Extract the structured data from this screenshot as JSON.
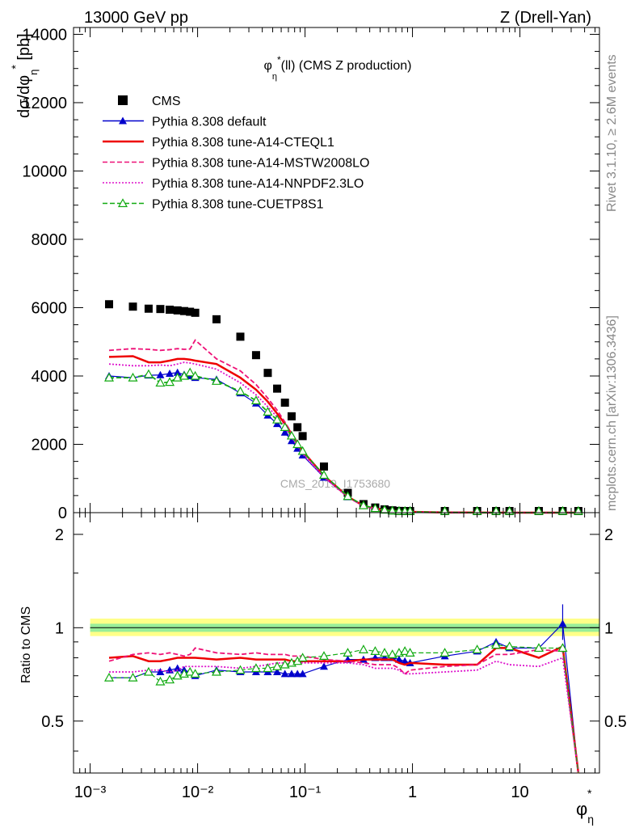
{
  "header": {
    "left": "13000 GeV pp",
    "right": "Z (Drell-Yan)"
  },
  "side_labels": {
    "rivet": "Rivet 3.1.10, ≥ 2.6M events",
    "mcplots": "mcplots.cern.ch [arXiv:1306.3436]"
  },
  "watermark": "CMS_2019_I1753680",
  "colors": {
    "cms": "#000000",
    "default": "#0000cc",
    "cteql1": "#ee0000",
    "mstw": "#ee1177",
    "nnpdf": "#dd11cc",
    "cuetp8s1": "#11aa11",
    "band_outer": "#ffff88",
    "band_inner": "#99ee99"
  },
  "chart_data": [
    {
      "type": "scatter",
      "title": "φ*η(ll) (CMS Z production)",
      "xlabel": "φ*η",
      "ylabel": "dσ/dφ*η [pb]",
      "xscale": "log",
      "xlim": [
        0.0007,
        55
      ],
      "ylim": [
        0,
        14200
      ],
      "yticks": [
        0,
        2000,
        4000,
        6000,
        8000,
        10000,
        12000,
        14000
      ],
      "ytick_labels": [
        "0",
        "2000",
        "4000",
        "6000",
        "8000",
        "10000",
        "12000",
        "14000"
      ],
      "legend_position": "top-left",
      "x": [
        0.0015,
        0.0025,
        0.0035,
        0.0045,
        0.0055,
        0.0065,
        0.0075,
        0.0085,
        0.0095,
        0.015,
        0.025,
        0.035,
        0.045,
        0.055,
        0.065,
        0.075,
        0.085,
        0.095,
        0.15,
        0.25,
        0.35,
        0.45,
        0.55,
        0.65,
        0.75,
        0.85,
        0.95,
        2.0,
        4.0,
        6.0,
        8.0,
        15.0,
        25.0,
        35.0
      ],
      "series": [
        {
          "name": "CMS",
          "key": "cms",
          "marker": "square",
          "line": "none",
          "values": [
            6100,
            6030,
            5970,
            5960,
            5940,
            5920,
            5900,
            5880,
            5850,
            5660,
            5150,
            4610,
            4090,
            3630,
            3220,
            2820,
            2500,
            2240,
            1350,
            580,
            250,
            150,
            95,
            68,
            50,
            38,
            30,
            8,
            2.5,
            1.2,
            0.7,
            0.25,
            0.08,
            0.0015
          ]
        },
        {
          "name": "Pythia 8.308 default",
          "key": "default",
          "marker": "filled-triangle",
          "line": "solid",
          "values": [
            4000,
            3950,
            4020,
            4030,
            4070,
            4100,
            4040,
            4000,
            3950,
            3900,
            3500,
            3200,
            2850,
            2600,
            2350,
            2100,
            1880,
            1680,
            1030,
            460,
            200,
            120,
            77,
            55,
            40,
            30,
            23,
            6.5,
            2.1,
            1.1,
            0.6,
            0.22,
            0.08,
            0.0003
          ]
        },
        {
          "name": "Pythia 8.308 tune-A14-CTEQL1",
          "key": "cteql1",
          "marker": "none",
          "line": "solid",
          "values": [
            4560,
            4580,
            4400,
            4400,
            4450,
            4500,
            4500,
            4480,
            4450,
            4350,
            3950,
            3600,
            3250,
            2900,
            2600,
            2300,
            2050,
            1800,
            1080,
            470,
            200,
            118,
            75,
            52,
            38,
            28,
            23,
            6.1,
            1.9,
            1.0,
            0.6,
            0.2,
            0.07,
            0.0003
          ]
        },
        {
          "name": "Pythia 8.308 tune-A14-MSTW2008LO",
          "key": "mstw",
          "marker": "none",
          "line": "dashed",
          "values": [
            4750,
            4800,
            4780,
            4750,
            4770,
            4800,
            4780,
            4790,
            5050,
            4500,
            4150,
            3750,
            3350,
            3000,
            2650,
            2330,
            2050,
            1800,
            1060,
            460,
            190,
            112,
            72,
            50,
            37,
            27,
            22,
            6.0,
            1.9,
            1.0,
            0.55,
            0.2,
            0.07,
            0.0003
          ]
        },
        {
          "name": "Pythia 8.308 tune-A14-NNPDF2.3LO",
          "key": "nnpdf",
          "marker": "none",
          "line": "dotted",
          "values": [
            4350,
            4300,
            4300,
            4320,
            4300,
            4350,
            4400,
            4380,
            4350,
            4200,
            3800,
            3450,
            3100,
            2800,
            2500,
            2200,
            1950,
            1720,
            1040,
            450,
            190,
            110,
            70,
            50,
            37,
            27,
            21,
            5.8,
            1.8,
            0.95,
            0.55,
            0.2,
            0.07,
            0.0003
          ]
        },
        {
          "name": "Pythia 8.308 tune-CUETP8S1",
          "key": "cuetp8s1",
          "marker": "open-triangle",
          "line": "dashed",
          "values": [
            3950,
            3950,
            4050,
            3800,
            3820,
            3950,
            4000,
            4100,
            4000,
            3850,
            3550,
            3280,
            2950,
            2720,
            2500,
            2250,
            2000,
            1800,
            1100,
            480,
            210,
            128,
            82,
            57,
            42,
            32,
            25,
            6.8,
            2.2,
            1.1,
            0.65,
            0.23,
            0.07,
            0.0003
          ]
        }
      ]
    },
    {
      "type": "line",
      "ylabel": "Ratio to CMS",
      "xscale": "log",
      "xlim": [
        0.0007,
        55
      ],
      "ylim": [
        0.34,
        2.35
      ],
      "yscale": "log",
      "yticks": [
        0.5,
        1,
        2
      ],
      "ytick_labels": [
        "0.5",
        "1",
        "2"
      ],
      "xticks": [
        0.001,
        0.01,
        0.1,
        1,
        10
      ],
      "xtick_labels": [
        "10⁻³",
        "10⁻²",
        "10⁻¹",
        "1",
        "10"
      ],
      "band_outer": [
        0.94,
        1.07
      ],
      "band_inner": [
        0.97,
        1.03
      ],
      "x": [
        0.0015,
        0.0025,
        0.0035,
        0.0045,
        0.0055,
        0.0065,
        0.0075,
        0.0085,
        0.0095,
        0.015,
        0.025,
        0.035,
        0.045,
        0.055,
        0.065,
        0.075,
        0.085,
        0.095,
        0.15,
        0.25,
        0.35,
        0.45,
        0.55,
        0.65,
        0.75,
        0.85,
        0.95,
        2.0,
        4.0,
        6.0,
        8.0,
        15.0,
        25.0,
        35.0
      ],
      "series": [
        {
          "name": "Pythia 8.308 default",
          "key": "default",
          "values": [
            0.69,
            0.69,
            0.72,
            0.72,
            0.73,
            0.74,
            0.73,
            0.72,
            0.7,
            0.73,
            0.72,
            0.72,
            0.72,
            0.72,
            0.71,
            0.71,
            0.71,
            0.71,
            0.75,
            0.79,
            0.79,
            0.8,
            0.8,
            0.8,
            0.79,
            0.78,
            0.77,
            0.81,
            0.84,
            0.9,
            0.86,
            0.86,
            1.03,
            0.25
          ]
        },
        {
          "name": "Pythia 8.308 tune-A14-CTEQL1",
          "key": "cteql1",
          "values": [
            0.8,
            0.81,
            0.78,
            0.78,
            0.79,
            0.8,
            0.8,
            0.8,
            0.8,
            0.79,
            0.8,
            0.79,
            0.79,
            0.79,
            0.79,
            0.78,
            0.78,
            0.78,
            0.78,
            0.78,
            0.79,
            0.79,
            0.79,
            0.79,
            0.77,
            0.76,
            0.77,
            0.76,
            0.76,
            0.86,
            0.86,
            0.8,
            0.87,
            0.25
          ]
        },
        {
          "name": "Pythia 8.308 tune-A14-MSTW2008LO",
          "key": "mstw",
          "values": [
            0.78,
            0.82,
            0.83,
            0.82,
            0.83,
            0.82,
            0.81,
            0.82,
            0.86,
            0.83,
            0.82,
            0.83,
            0.82,
            0.82,
            0.82,
            0.81,
            0.81,
            0.81,
            0.79,
            0.78,
            0.77,
            0.76,
            0.76,
            0.76,
            0.74,
            0.71,
            0.73,
            0.75,
            0.76,
            0.82,
            0.82,
            0.85,
            0.84,
            0.25
          ]
        },
        {
          "name": "Pythia 8.308 tune-A14-NNPDF2.3LO",
          "key": "nnpdf",
          "values": [
            0.72,
            0.72,
            0.73,
            0.73,
            0.72,
            0.73,
            0.75,
            0.75,
            0.75,
            0.75,
            0.74,
            0.75,
            0.76,
            0.77,
            0.77,
            0.77,
            0.77,
            0.77,
            0.77,
            0.77,
            0.76,
            0.74,
            0.74,
            0.74,
            0.73,
            0.71,
            0.71,
            0.72,
            0.73,
            0.78,
            0.76,
            0.75,
            0.8,
            0.25
          ]
        },
        {
          "name": "Pythia 8.308 tune-CUETP8S1",
          "key": "cuetp8s1",
          "values": [
            0.69,
            0.69,
            0.72,
            0.67,
            0.68,
            0.7,
            0.71,
            0.72,
            0.71,
            0.72,
            0.73,
            0.74,
            0.74,
            0.75,
            0.76,
            0.77,
            0.78,
            0.8,
            0.81,
            0.83,
            0.85,
            0.84,
            0.83,
            0.82,
            0.83,
            0.84,
            0.83,
            0.83,
            0.85,
            0.88,
            0.87,
            0.86,
            0.86,
            0.25
          ]
        }
      ]
    }
  ]
}
